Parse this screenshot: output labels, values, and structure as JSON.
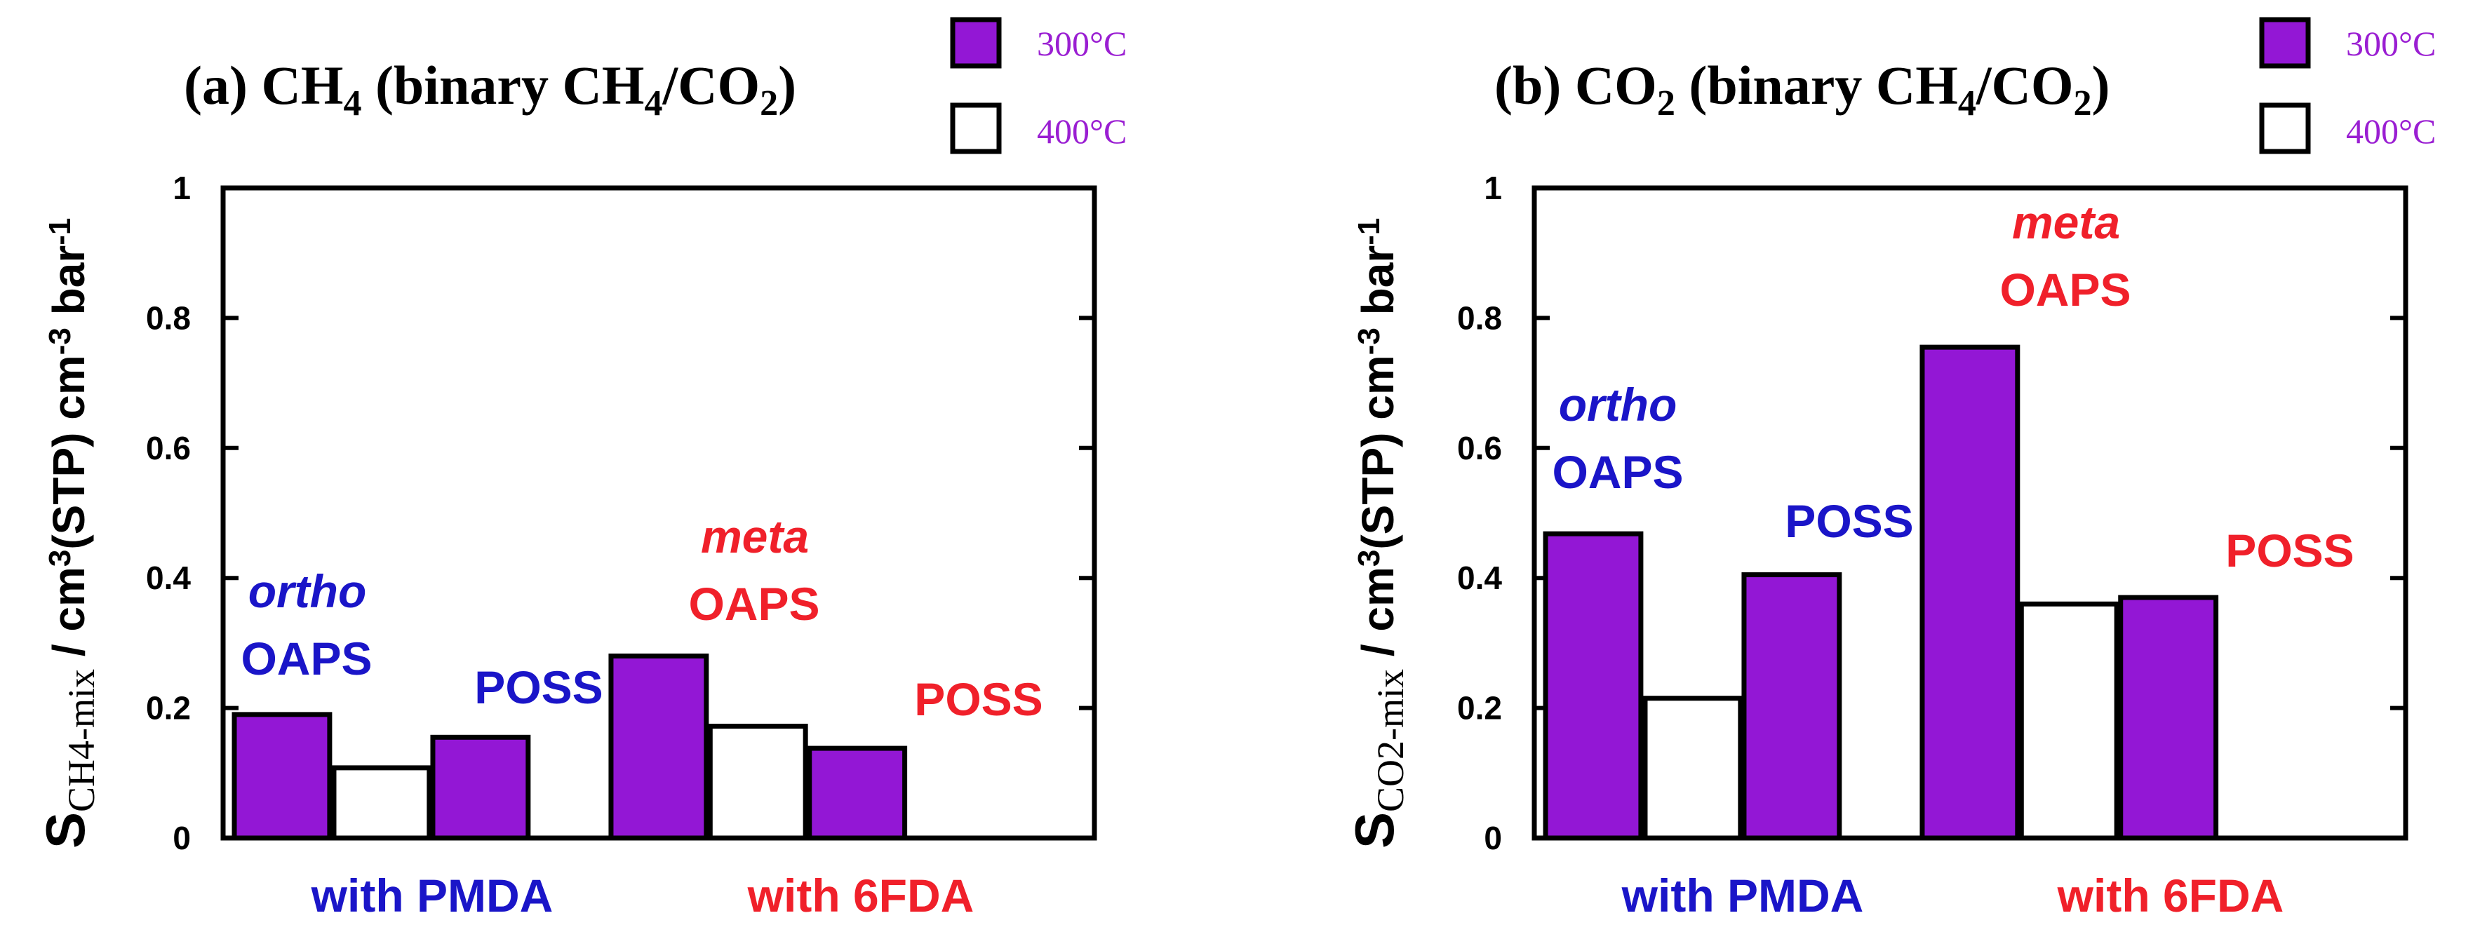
{
  "colors": {
    "bar_300": "#9317d5",
    "bar_400": "#ffffff",
    "legend_text": "#9a1ed2",
    "pmda": "#1a15c8",
    "sixfda": "#f0202a"
  },
  "legend": {
    "label_300": "300°C",
    "label_400": "400°C"
  },
  "chart_data": [
    {
      "type": "bar",
      "title": "(a) CH4 (binary CH4/CO2)",
      "ylabel": "S_CH4-mix / cm3(STP) cm-3 bar-1",
      "ylim": [
        0,
        1
      ],
      "yticks": [
        "0",
        "0.2",
        "0.4",
        "0.6",
        "0.8",
        "1"
      ],
      "categories": [
        "ortho OAPS with PMDA",
        "POSS with PMDA",
        "meta OAPS with 6FDA",
        "POSS with 6FDA"
      ],
      "series": [
        {
          "name": "300°C",
          "values": [
            0.19,
            0.155,
            0.28,
            0.138
          ]
        },
        {
          "name": "400°C",
          "values": [
            0.108,
            null,
            0.172,
            null
          ]
        }
      ],
      "groups": [
        {
          "label": "with PMDA",
          "annotations": [
            {
              "italic": "ortho",
              "text": "OAPS"
            },
            {
              "italic": "",
              "text": "POSS"
            }
          ]
        },
        {
          "label": "with 6FDA",
          "annotations": [
            {
              "italic": "meta",
              "text": "OAPS"
            },
            {
              "italic": "",
              "text": "POSS"
            }
          ]
        }
      ]
    },
    {
      "type": "bar",
      "title": "(b) CO2 (binary CH4/CO2)",
      "ylabel": "S_CO2-mix / cm3(STP) cm-3 bar-1",
      "ylim": [
        0,
        1
      ],
      "yticks": [
        "0",
        "0.2",
        "0.4",
        "0.6",
        "0.8",
        "1"
      ],
      "categories": [
        "ortho OAPS with PMDA",
        "POSS with PMDA",
        "meta OAPS with 6FDA",
        "POSS with 6FDA"
      ],
      "series": [
        {
          "name": "300°C",
          "values": [
            0.468,
            0.405,
            0.755,
            0.37
          ]
        },
        {
          "name": "400°C",
          "values": [
            0.215,
            null,
            0.36,
            null
          ]
        }
      ],
      "groups": [
        {
          "label": "with PMDA",
          "annotations": [
            {
              "italic": "ortho",
              "text": "OAPS"
            },
            {
              "italic": "",
              "text": "POSS"
            }
          ]
        },
        {
          "label": "with 6FDA",
          "annotations": [
            {
              "italic": "meta",
              "text": "OAPS"
            },
            {
              "italic": "",
              "text": "POSS"
            }
          ]
        }
      ]
    }
  ],
  "panels": [
    {
      "title": {
        "p1": "(a) CH",
        "s1": "4",
        "p2": " (binary CH",
        "s2": "4",
        "p3": "/CO",
        "s3": "2",
        "p4": ")"
      },
      "ylabel": {
        "s": "S",
        "sub": "CH4-mix",
        "p1": " / cm",
        "sup1": "3",
        "p2": "(STP) cm",
        "sup2": "-3",
        "p3": " bar",
        "sup3": "-1"
      }
    },
    {
      "title": {
        "p1": "(b) CO",
        "s1": "2",
        "p2": " (binary CH",
        "s2": "4",
        "p3": "/CO",
        "s3": "2",
        "p4": ")"
      },
      "ylabel": {
        "s": "S",
        "sub": "CO2-mix",
        "p1": " / cm",
        "sup1": "3",
        "p2": "(STP) cm",
        "sup2": "-3",
        "p3": " bar",
        "sup3": "-1"
      }
    }
  ]
}
